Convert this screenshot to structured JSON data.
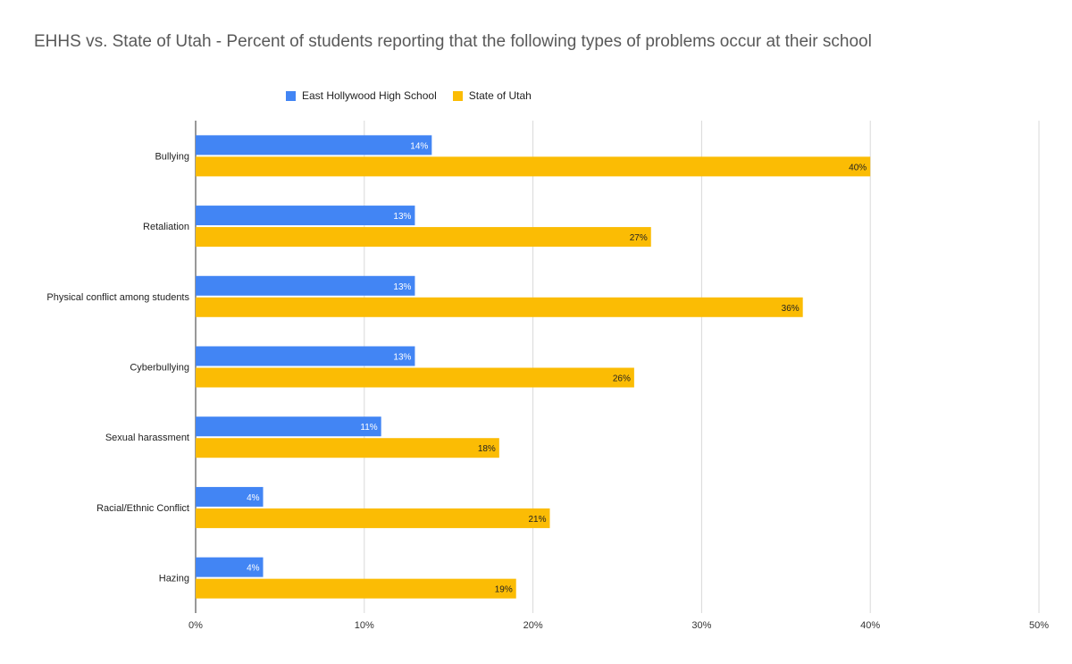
{
  "chart_data": {
    "type": "bar",
    "orientation": "horizontal",
    "title": "EHHS vs. State of Utah - Percent of students reporting that the following types of problems occur at their school",
    "categories": [
      "Bullying",
      "Retaliation",
      "Physical conflict among students",
      "Cyberbullying",
      "Sexual harassment",
      "Racial/Ethnic Conflict",
      "Hazing"
    ],
    "series": [
      {
        "name": "East Hollywood High School",
        "color": "#4285f4",
        "values": [
          14,
          13,
          13,
          13,
          11,
          4,
          4
        ],
        "labels": [
          "14%",
          "13%",
          "13%",
          "13%",
          "11%",
          "4%",
          "4%"
        ]
      },
      {
        "name": "State of Utah",
        "color": "#fbbc04",
        "values": [
          40,
          27,
          36,
          26,
          18,
          21,
          19
        ],
        "labels": [
          "40%",
          "27%",
          "36%",
          "26%",
          "18%",
          "21%",
          "19%"
        ]
      }
    ],
    "xlim": [
      0,
      50
    ],
    "xticks": [
      0,
      10,
      20,
      30,
      40,
      50
    ],
    "xtick_labels": [
      "0%",
      "10%",
      "20%",
      "30%",
      "40%",
      "50%"
    ],
    "grid": true,
    "legend_position": "top"
  }
}
